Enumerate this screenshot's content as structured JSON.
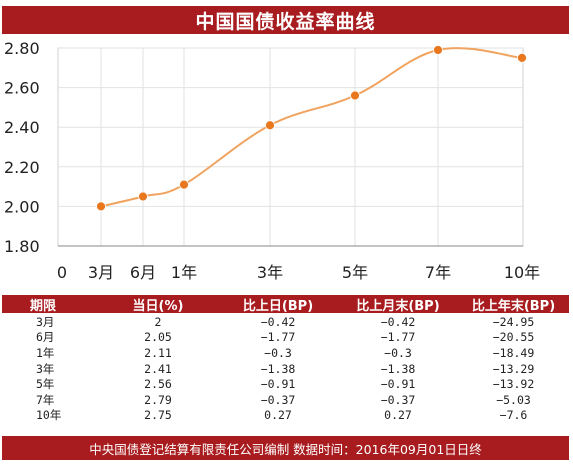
{
  "title": "中国国债收益率曲线",
  "chart_data": {
    "type": "line",
    "title": "中国国债收益率曲线",
    "x_ticks": [
      "0",
      "3月",
      "6月",
      "1年",
      "3年",
      "5年",
      "7年",
      "10年"
    ],
    "x": [
      "3月",
      "6月",
      "1年",
      "3年",
      "5年",
      "7年",
      "10年"
    ],
    "series": [
      {
        "values": [
          2.0,
          2.05,
          2.11,
          2.41,
          2.56,
          2.79,
          2.75
        ]
      }
    ],
    "y_ticks": [
      "1.80",
      "2.00",
      "2.20",
      "2.40",
      "2.60",
      "2.80"
    ],
    "ylim": [
      1.8,
      2.8
    ],
    "grid": true,
    "line_color": "#f0a35e",
    "marker_color": "#e8771e"
  },
  "table": {
    "headers": [
      "期限",
      "当日(%)",
      "比上日(BP)",
      "比上月末(BP)",
      "比上年末(BP)"
    ],
    "rows": [
      [
        "3月",
        "2",
        "-0.42",
        "-0.42",
        "-24.95"
      ],
      [
        "6月",
        "2.05",
        "-1.77",
        "-1.77",
        "-20.55"
      ],
      [
        "1年",
        "2.11",
        "-0.3",
        "-0.3",
        "-18.49"
      ],
      [
        "3年",
        "2.41",
        "-1.38",
        "-1.38",
        "-13.29"
      ],
      [
        "5年",
        "2.56",
        "-0.91",
        "-0.91",
        "-13.92"
      ],
      [
        "7年",
        "2.79",
        "-0.37",
        "-0.37",
        "-5.03"
      ],
      [
        "10年",
        "2.75",
        "0.27",
        "0.27",
        "-7.6"
      ]
    ]
  },
  "footer": "中央国债登记结算有限责任公司编制 数据时间：2016年09月01日日终",
  "colors": {
    "brand": "#a81c1f",
    "grid": "#e2e2e2",
    "axis": "#888888"
  }
}
